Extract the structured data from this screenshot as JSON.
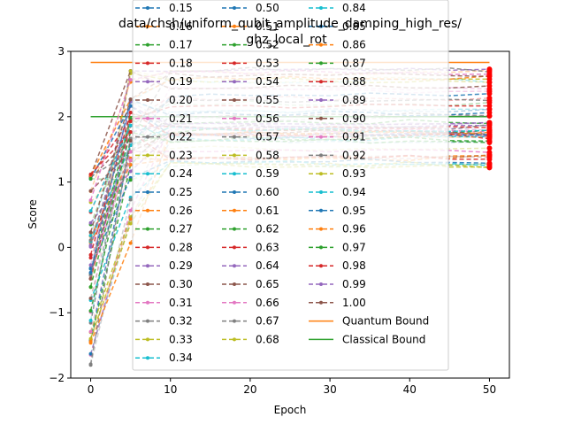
{
  "chart_data": {
    "type": "line",
    "title_lines": [
      "data/chsh/uniform_qubit_amplitude_damping_high_res/",
      "ghz_local_rot"
    ],
    "xlabel": "Epoch",
    "ylabel": "Score",
    "xlim": [
      -2.5,
      52.5
    ],
    "ylim": [
      -2.0,
      3.0
    ],
    "xticks": [
      0,
      10,
      20,
      30,
      40,
      50
    ],
    "yticks": [
      -2,
      -1,
      0,
      1,
      2,
      3
    ],
    "x_epochs": [
      0,
      5,
      10,
      15,
      20,
      25,
      30,
      35,
      40,
      45,
      50
    ],
    "legend_position": "top-center",
    "legend_columns": 3,
    "series_names": [
      "0.15",
      "0.16",
      "0.17",
      "0.18",
      "0.19",
      "0.20",
      "0.21",
      "0.22",
      "0.23",
      "0.24",
      "0.25",
      "0.26",
      "0.27",
      "0.28",
      "0.29",
      "0.30",
      "0.31",
      "0.32",
      "0.33",
      "0.34",
      "0.50",
      "0.51",
      "0.52",
      "0.53",
      "0.54",
      "0.55",
      "0.56",
      "0.57",
      "0.58",
      "0.59",
      "0.60",
      "0.61",
      "0.62",
      "0.63",
      "0.64",
      "0.65",
      "0.66",
      "0.67",
      "0.68",
      "0.84",
      "0.85",
      "0.86",
      "0.87",
      "0.88",
      "0.89",
      "0.90",
      "0.91",
      "0.92",
      "0.93",
      "0.94",
      "0.95",
      "0.96",
      "0.97",
      "0.98",
      "0.99",
      "1.00"
    ],
    "reference_lines": [
      {
        "name": "Quantum Bound",
        "y": 2.83,
        "color": "#ff7f0e"
      },
      {
        "name": "Classical Bound",
        "y": 2.0,
        "color": "#2ca02c"
      }
    ],
    "palette": [
      "#1f77b4",
      "#ff7f0e",
      "#2ca02c",
      "#d62728",
      "#9467bd",
      "#8c564b",
      "#e377c2",
      "#7f7f7f",
      "#bcbd22",
      "#17becf"
    ],
    "final_marker_color": "#ff0000"
  }
}
